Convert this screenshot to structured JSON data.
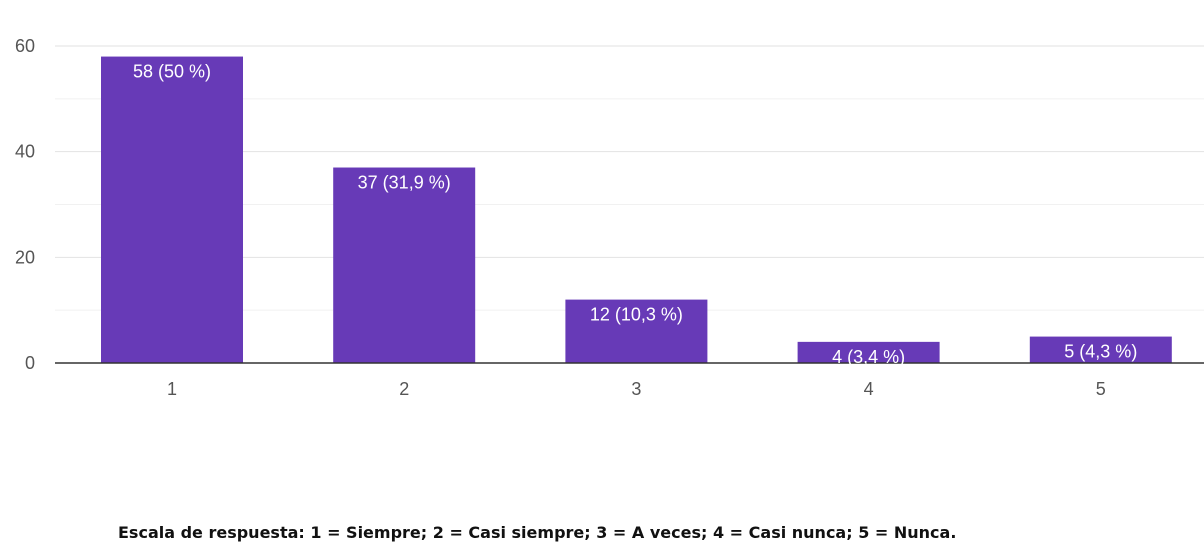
{
  "chart_data": {
    "type": "bar",
    "categories": [
      "1",
      "2",
      "3",
      "4",
      "5"
    ],
    "values": [
      58,
      37,
      12,
      4,
      5
    ],
    "data_labels": [
      "58 (50 %)",
      "37 (31,9 %)",
      "12 (10,3 %)",
      "4 (3,4 %)",
      "5 (4,3 %)"
    ],
    "ylim": [
      0,
      60
    ],
    "yticks": [
      0,
      20,
      40,
      60
    ],
    "grid": true,
    "bar_color": "#673ab7",
    "title": "",
    "xlabel": "",
    "ylabel": ""
  },
  "caption": "Escala de respuesta: 1 = Siempre; 2 = Casi siempre; 3 = A veces; 4 = Casi nunca; 5 = Nunca."
}
